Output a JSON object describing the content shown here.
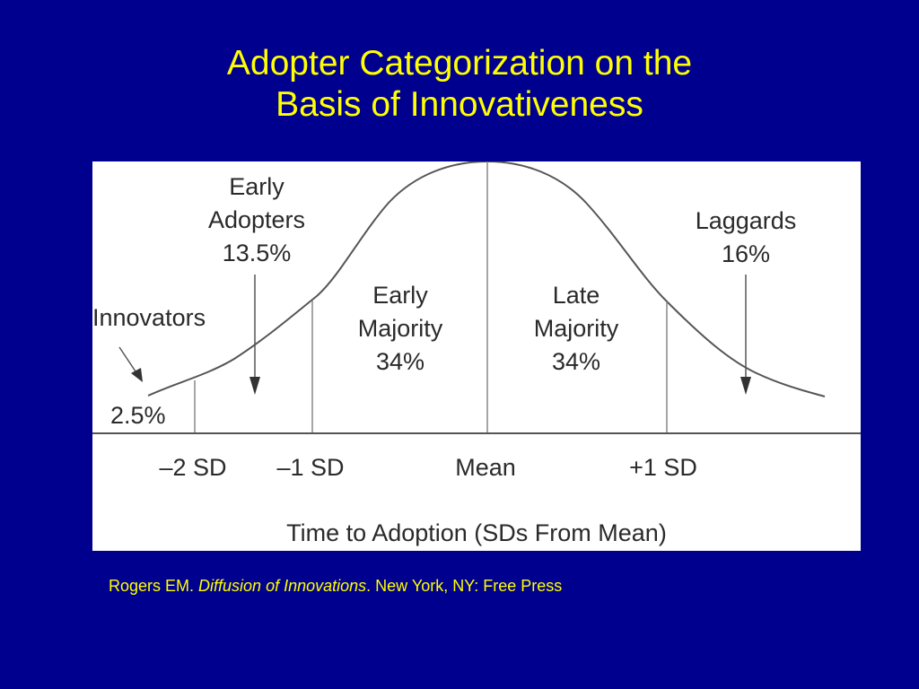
{
  "title": {
    "line1": "Adopter Categorization on the",
    "line2": "Basis of Innovativeness"
  },
  "diagram": {
    "labels": {
      "early_adopters": [
        "Early",
        "Adopters",
        "13.5%"
      ],
      "innovators": "Innovators",
      "innovators_pct": "2.5%",
      "early_majority": [
        "Early",
        "Majority",
        "34%"
      ],
      "late_majority": [
        "Late",
        "Majority",
        "34%"
      ],
      "laggards": [
        "Laggards",
        "16%"
      ]
    },
    "axis_ticks": [
      "–2 SD",
      "–1 SD",
      "Mean",
      "+1 SD"
    ],
    "axis_title": "Time to Adoption (SDs From Mean)",
    "colors": {
      "curve": "#555555",
      "text": "#2a2a2a"
    }
  },
  "citation": {
    "author": "Rogers EM. ",
    "work": "Diffusion of Innovations",
    "publisher": ". New York, NY: Free Press"
  },
  "background": "#00008e",
  "title_color": "#ffff00"
}
